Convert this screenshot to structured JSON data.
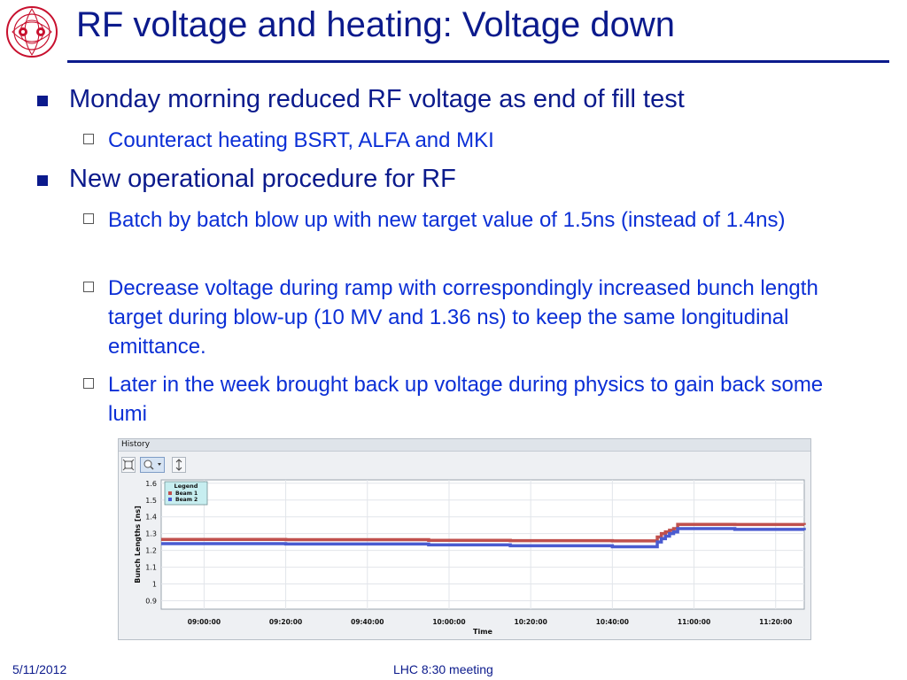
{
  "slide": {
    "title": "RF voltage and heating: Voltage down",
    "bullets": [
      {
        "text": "Monday morning reduced RF voltage as end of fill test",
        "sub": [
          "Counteract heating BSRT, ALFA and MKI"
        ]
      },
      {
        "text": "New operational procedure for RF",
        "sub": [
          "Batch by batch blow up with new target value of 1.5ns (instead of 1.4ns)",
          "Decrease voltage during ramp with correspondingly increased bunch length target during blow-up (10 MV and 1.36 ns) to keep the same longitudinal emittance.",
          "Later in the week brought back up voltage during physics to gain back some lumi"
        ]
      }
    ],
    "footer": {
      "date": "5/11/2012",
      "center": "LHC 8:30 meeting"
    }
  },
  "history_panel": {
    "title": "History",
    "tool_icons": [
      "fit-view-icon",
      "zoom-icon",
      "dropdown-arrow-icon",
      "vertical-resize-icon"
    ]
  },
  "colors": {
    "title": "#0b1a8c",
    "subbullet": "#0b2fd6",
    "beam1": "#c0504d",
    "beam2": "#4a5bd0",
    "legend_bg": "#c7eef0"
  },
  "chart_data": {
    "type": "line",
    "title": "",
    "xlabel": "Time",
    "ylabel": "Bunch Lengths [ns]",
    "ylim": [
      0.85,
      1.62
    ],
    "yticks": [
      "0.9",
      "1",
      "1.1",
      "1.2",
      "1.3",
      "1.4",
      "1.5",
      "1.6"
    ],
    "xlim": [
      "08:49:30",
      "11:27:00"
    ],
    "xticks": [
      "09:00:00",
      "09:20:00",
      "09:40:00",
      "10:00:00",
      "10:20:00",
      "10:40:00",
      "11:00:00",
      "11:20:00"
    ],
    "grid": true,
    "legend": {
      "title": "Legend",
      "position": "top-left",
      "entries": [
        "Beam 1",
        "Beam 2"
      ]
    },
    "series": [
      {
        "name": "Beam 1",
        "x": [
          "08:49:30",
          "09:20:00",
          "09:55:00",
          "10:15:00",
          "10:40:00",
          "10:50:00",
          "10:51:00",
          "10:52:00",
          "10:53:00",
          "10:54:00",
          "10:55:00",
          "10:56:00",
          "11:10:00",
          "11:27:00"
        ],
        "y": [
          1.265,
          1.264,
          1.26,
          1.258,
          1.257,
          1.257,
          1.28,
          1.3,
          1.31,
          1.32,
          1.33,
          1.355,
          1.354,
          1.352
        ]
      },
      {
        "name": "Beam 2",
        "x": [
          "08:49:30",
          "09:20:00",
          "09:55:00",
          "10:15:00",
          "10:40:00",
          "10:50:00",
          "10:51:00",
          "10:52:00",
          "10:53:00",
          "10:54:00",
          "10:55:00",
          "10:56:00",
          "11:10:00",
          "11:27:00"
        ],
        "y": [
          1.24,
          1.238,
          1.233,
          1.228,
          1.222,
          1.222,
          1.25,
          1.27,
          1.285,
          1.3,
          1.31,
          1.33,
          1.325,
          1.32
        ]
      }
    ]
  }
}
